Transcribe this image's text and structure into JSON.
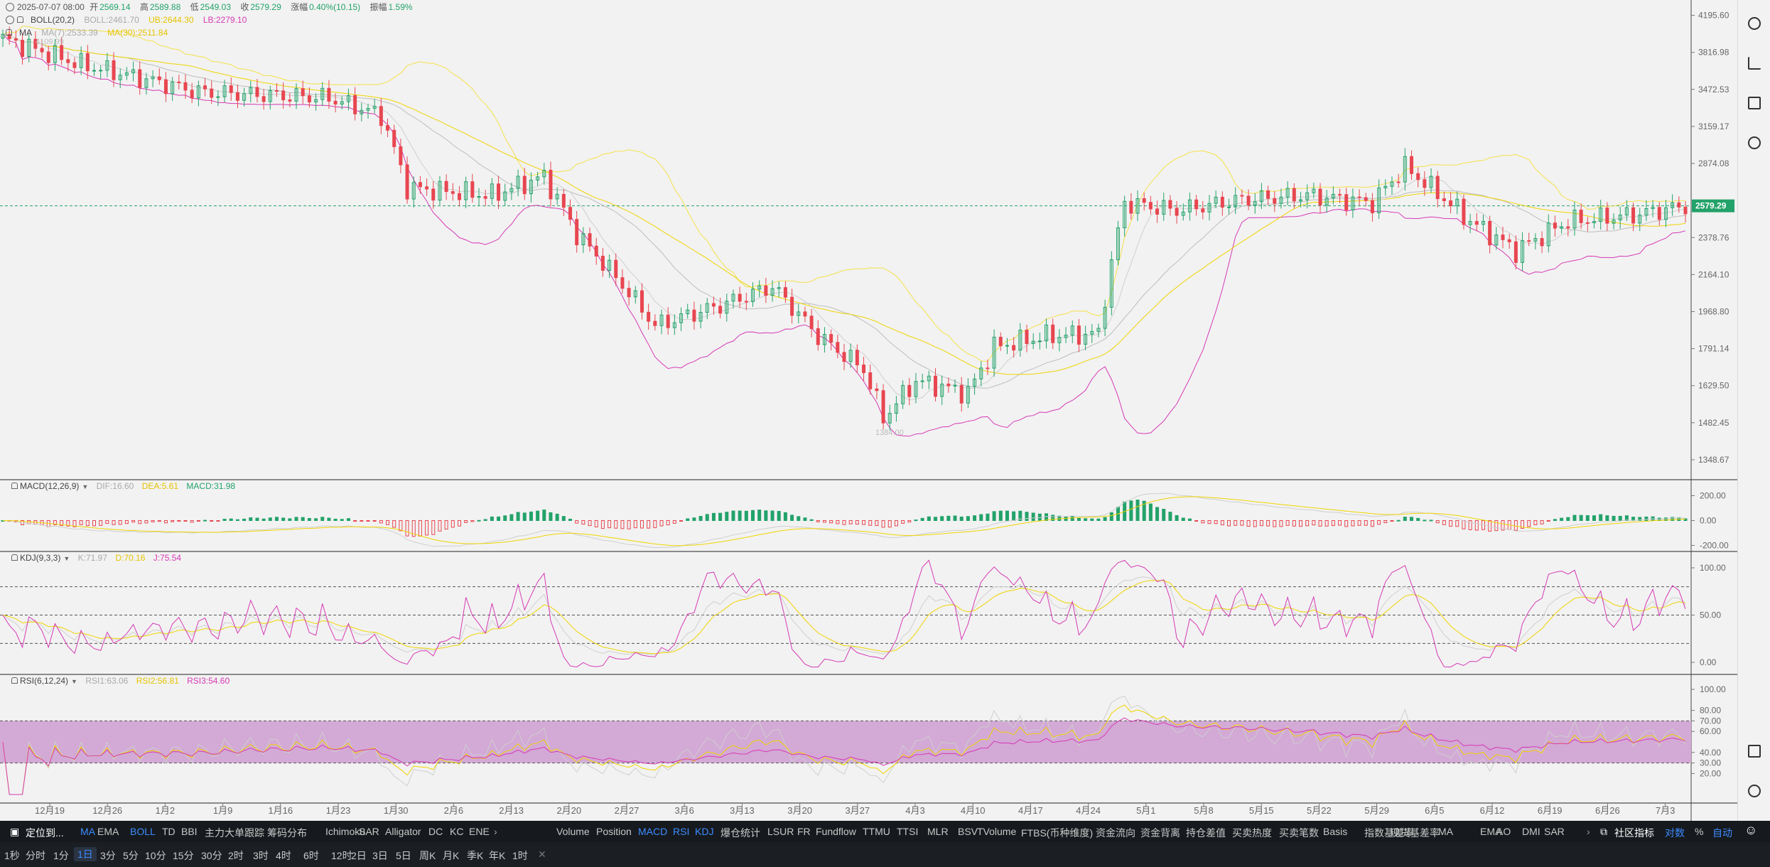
{
  "header": {
    "row1": {
      "date": "2025-07-07 08:00",
      "open_label": "开",
      "open": "2569.14",
      "high_label": "高",
      "high": "2589.88",
      "low_label": "低",
      "low": "2549.03",
      "close_label": "收",
      "close": "2579.29",
      "change_label": "涨幅",
      "change": "0.40%(10.15)",
      "amp_label": "振幅",
      "amp": "1.59%"
    },
    "row2": {
      "name": "BOLL(20,2)",
      "boll": "BOLL:2461.70",
      "ub": "UB:2644.30",
      "lb": "LB:2279.10"
    },
    "row3": {
      "name": "MA",
      "ma7": "MA(7):2533.39",
      "ma30": "MA(30):2511.84"
    }
  },
  "price_axis": [
    "4195.60",
    "3816.98",
    "3472.53",
    "3159.17",
    "2874.08",
    "2378.76",
    "2164.10",
    "1968.80",
    "1791.14",
    "1629.50",
    "1482.45",
    "1348.67"
  ],
  "last_price": "2579.29",
  "high_mark": "4109.99",
  "low_mark": "1384.00",
  "macd": {
    "title": "MACD(12,26,9)",
    "dif": "DIF:16.60",
    "dea": "DEA:5.61",
    "macd": "MACD:31.98",
    "axis": [
      "200.00",
      "0.00",
      "-200.00"
    ]
  },
  "kdj": {
    "title": "KDJ(9,3,3)",
    "k": "K:71.97",
    "d": "D:70.16",
    "j": "J:75.54",
    "axis": [
      "100.00",
      "50.00",
      "0.00"
    ]
  },
  "rsi": {
    "title": "RSI(6,12,24)",
    "rsi1": "RSI1:63.06",
    "rsi2": "RSI2:56.81",
    "rsi3": "RSI3:54.60",
    "axis": [
      "100.00",
      "80.00",
      "70.00",
      "60.00",
      "40.00",
      "30.00",
      "20.00"
    ]
  },
  "time_axis": [
    "12月19",
    "12月26",
    "1月2",
    "1月9",
    "1月16",
    "1月23",
    "1月30",
    "2月6",
    "2月13",
    "2月20",
    "2月27",
    "3月6",
    "3月13",
    "3月20",
    "3月27",
    "4月3",
    "4月10",
    "4月17",
    "4月24",
    "5月1",
    "5月8",
    "5月15",
    "5月22",
    "5月29",
    "6月5",
    "6月12",
    "6月19",
    "6月26",
    "7月3"
  ],
  "toolbar": {
    "locate": "定位到...",
    "main_indicators": [
      "MA",
      "EMA",
      "BOLL",
      "TD",
      "BBI",
      "主力大单跟踪",
      "筹码分布",
      "Ichimoku",
      "SAR",
      "Alligator",
      "DC",
      "KC",
      "ENE"
    ],
    "sub_indicators": [
      "Volume",
      "Position",
      "MACD",
      "RSI",
      "KDJ",
      "爆仓统计",
      "LSUR",
      "FR",
      "Fundflow",
      "TTMU",
      "TTSI",
      "MLR",
      "BSV",
      "TVolume",
      "FTBS(币种维度)",
      "资金流向",
      "资金背离",
      "持仓差值",
      "买卖热度",
      "买卖笔数",
      "Basis",
      "指数基差率",
      "现货基差率",
      "MA",
      "EMA",
      "AO",
      "DMI",
      "SAR"
    ],
    "community": "社区指标",
    "log": "对数",
    "percent": "%",
    "auto": "自动"
  },
  "timeframes": [
    "1秒",
    "分时",
    "1分",
    "1日",
    "3分",
    "5分",
    "10分",
    "15分",
    "30分",
    "2时",
    "3时",
    "4时",
    "6时",
    "12时",
    "2日",
    "3日",
    "5日",
    "周K",
    "月K",
    "季K",
    "年K",
    "1时"
  ],
  "colors": {
    "up": "#23a26a",
    "down": "#e84650",
    "boll_mid": "#bdbdbd",
    "boll_band": "#f5e14a",
    "boll_lb": "#d63ab5",
    "ma30": "#f0d400",
    "rsi_band": "#d3a9d6"
  }
}
